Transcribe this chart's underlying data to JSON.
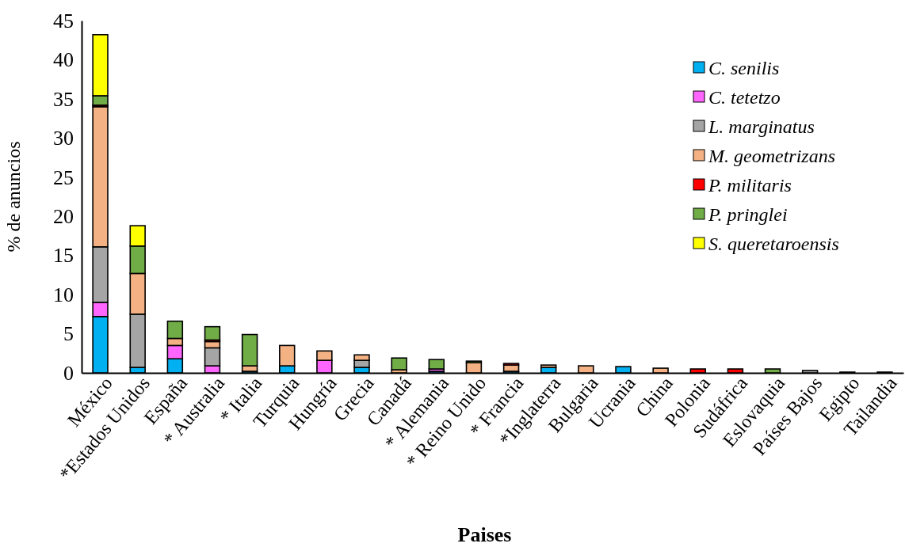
{
  "chart_data": {
    "type": "bar",
    "stacked": true,
    "xlabel": "Paises",
    "ylabel": "% de anuncios",
    "categories": [
      "México",
      "*Estados Unidos",
      "España",
      "* Australia",
      "* Italia",
      "Turquia",
      "Hungría",
      "Grecia",
      "Canadá",
      "* Alemania",
      "* Reino Unido",
      "* Francia",
      "*Inglaterra",
      "Bulgaria",
      "Ucrania",
      "China",
      "Polonia",
      "Sudáfrica",
      "Eslovaquia",
      "Países Bajos",
      "Egipto",
      "Tailandia"
    ],
    "series": [
      {
        "name": "C. senilis",
        "color": "#00b0f0",
        "values": [
          7.2,
          0.7,
          1.8,
          null,
          0.2,
          0.9,
          0,
          0.7,
          0,
          0.2,
          0,
          0.2,
          0.7,
          0,
          0.8,
          0,
          0,
          0,
          0,
          0,
          0,
          0
        ]
      },
      {
        "name": "C. tetetzo",
        "color": "#ff66ff",
        "values": [
          1.8,
          0,
          1.7,
          0.9,
          0,
          0,
          1.6,
          0,
          0,
          0.3,
          0,
          0,
          0,
          0,
          0,
          0,
          null,
          0,
          0,
          0,
          0,
          0
        ]
      },
      {
        "name": "L. marginatus",
        "color": "#a5a5a5",
        "values": [
          7.1,
          6.8,
          0,
          2.3,
          0,
          0,
          0,
          0.9,
          0,
          0,
          0,
          0,
          0,
          0,
          0,
          0,
          0,
          0,
          0,
          0.3,
          0,
          0
        ]
      },
      {
        "name": "M. geometrizans",
        "color": "#f4b183",
        "values": [
          17.9,
          5.2,
          0.9,
          0.8,
          0.7,
          2.6,
          1.2,
          0.7,
          0.4,
          0,
          1.3,
          0.8,
          0.3,
          0.9,
          0,
          0.6,
          0,
          0,
          0,
          0,
          0,
          0
        ]
      },
      {
        "name": "P. militaris",
        "color": "#ff0000",
        "values": [
          0.2,
          0,
          0,
          0.2,
          0,
          0,
          0,
          0,
          0,
          0,
          0,
          0.2,
          0,
          0,
          0,
          0,
          0.5,
          0.5,
          0,
          0,
          0.1,
          0.1
        ]
      },
      {
        "name": "P. pringlei",
        "color": "#70ad47",
        "values": [
          1.2,
          3.5,
          2.2,
          1.7,
          4.0,
          0,
          0,
          0,
          1.5,
          1.2,
          0.2,
          0,
          0,
          0,
          0,
          0,
          0,
          0,
          0.5,
          0,
          0,
          0
        ]
      },
      {
        "name": "S. queretaroensis",
        "color": "#ffff00",
        "values": [
          7.8,
          2.6,
          0,
          0,
          0,
          0,
          0,
          0,
          0,
          0,
          0,
          0,
          0,
          0,
          0,
          0,
          0,
          0,
          0,
          0,
          0,
          0
        ]
      }
    ],
    "ylim": [
      0,
      45
    ],
    "yticks": [
      0,
      5,
      10,
      15,
      20,
      25,
      30,
      35,
      40,
      45
    ],
    "grid": false,
    "legend": "top right"
  }
}
